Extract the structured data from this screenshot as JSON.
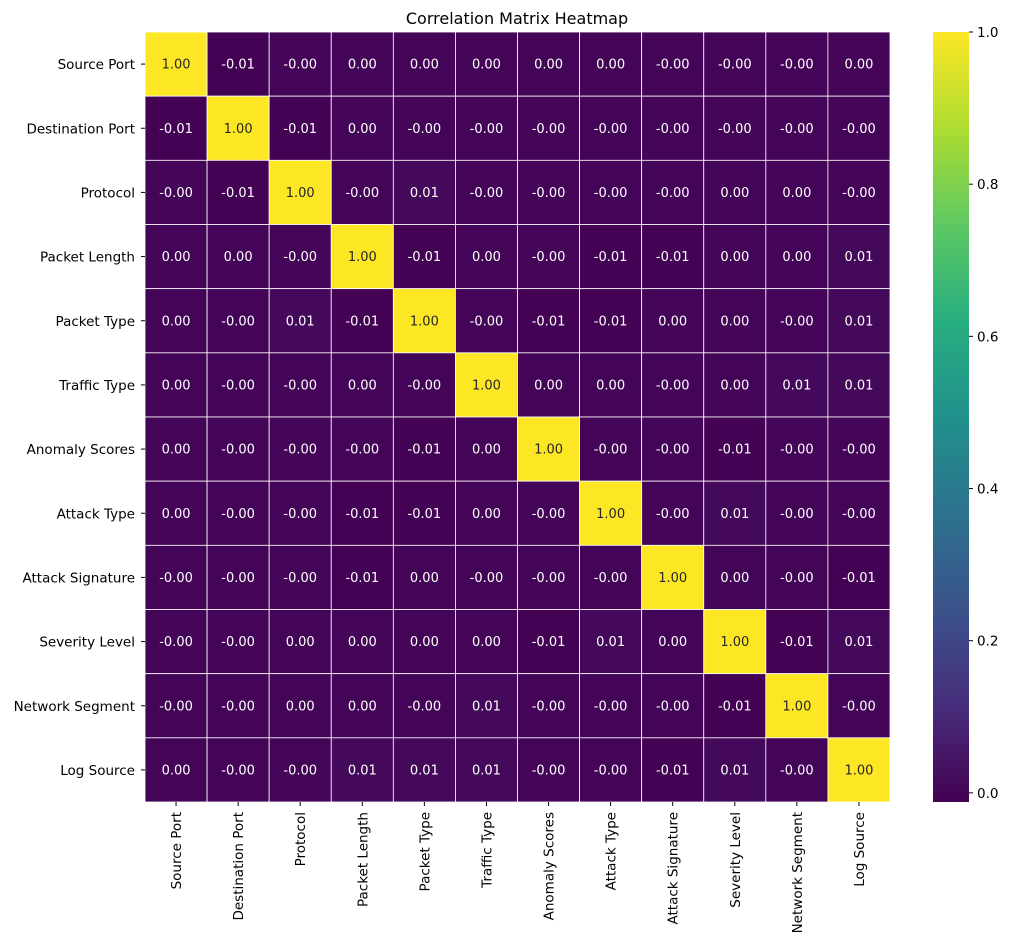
{
  "chart_data": {
    "type": "heatmap",
    "title": "Correlation Matrix Heatmap",
    "labels": [
      "Source Port",
      "Destination Port",
      "Protocol",
      "Packet Length",
      "Packet Type",
      "Traffic Type",
      "Anomaly Scores",
      "Attack Type",
      "Attack Signature",
      "Severity Level",
      "Network Segment",
      "Log Source"
    ],
    "values": [
      [
        "1.00",
        "-0.01",
        "-0.00",
        "0.00",
        "0.00",
        "0.00",
        "0.00",
        "0.00",
        "-0.00",
        "-0.00",
        "-0.00",
        "0.00"
      ],
      [
        "-0.01",
        "1.00",
        "-0.01",
        "0.00",
        "-0.00",
        "-0.00",
        "-0.00",
        "-0.00",
        "-0.00",
        "-0.00",
        "-0.00",
        "-0.00"
      ],
      [
        "-0.00",
        "-0.01",
        "1.00",
        "-0.00",
        "0.01",
        "-0.00",
        "-0.00",
        "-0.00",
        "-0.00",
        "0.00",
        "0.00",
        "-0.00"
      ],
      [
        "0.00",
        "0.00",
        "-0.00",
        "1.00",
        "-0.01",
        "0.00",
        "-0.00",
        "-0.01",
        "-0.01",
        "0.00",
        "0.00",
        "0.01"
      ],
      [
        "0.00",
        "-0.00",
        "0.01",
        "-0.01",
        "1.00",
        "-0.00",
        "-0.01",
        "-0.01",
        "0.00",
        "0.00",
        "-0.00",
        "0.01"
      ],
      [
        "0.00",
        "-0.00",
        "-0.00",
        "0.00",
        "-0.00",
        "1.00",
        "0.00",
        "0.00",
        "-0.00",
        "0.00",
        "0.01",
        "0.01"
      ],
      [
        "0.00",
        "-0.00",
        "-0.00",
        "-0.00",
        "-0.01",
        "0.00",
        "1.00",
        "-0.00",
        "-0.00",
        "-0.01",
        "-0.00",
        "-0.00"
      ],
      [
        "0.00",
        "-0.00",
        "-0.00",
        "-0.01",
        "-0.01",
        "0.00",
        "-0.00",
        "1.00",
        "-0.00",
        "0.01",
        "-0.00",
        "-0.00"
      ],
      [
        "-0.00",
        "-0.00",
        "-0.00",
        "-0.01",
        "0.00",
        "-0.00",
        "-0.00",
        "-0.00",
        "1.00",
        "0.00",
        "-0.00",
        "-0.01"
      ],
      [
        "-0.00",
        "-0.00",
        "0.00",
        "0.00",
        "0.00",
        "0.00",
        "-0.01",
        "0.01",
        "0.00",
        "1.00",
        "-0.01",
        "0.01"
      ],
      [
        "-0.00",
        "-0.00",
        "0.00",
        "0.00",
        "-0.00",
        "0.01",
        "-0.00",
        "-0.00",
        "-0.00",
        "-0.01",
        "1.00",
        "-0.00"
      ],
      [
        "0.00",
        "-0.00",
        "-0.00",
        "0.01",
        "0.01",
        "0.01",
        "-0.00",
        "-0.00",
        "-0.01",
        "0.01",
        "-0.00",
        "1.00"
      ]
    ],
    "colormap": "viridis",
    "vmin": -0.012,
    "vmax": 1.0,
    "colorbar_ticks": [
      "0.0",
      "0.2",
      "0.4",
      "0.6",
      "0.8",
      "1.0"
    ],
    "colorbar_position": "right",
    "cell_border_color": "#ffffff"
  }
}
